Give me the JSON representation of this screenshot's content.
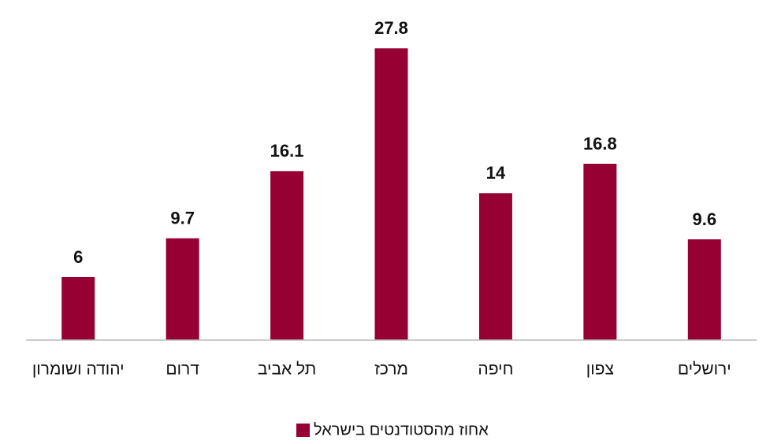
{
  "chart_data": {
    "type": "bar",
    "categories": [
      "יהודה ושומרון",
      "דרום",
      "תל אביב",
      "מרכז",
      "חיפה",
      "צפון",
      "ירושלים"
    ],
    "series": [
      {
        "name": "אחוז מהסטודנטים בישראל",
        "color": "#960032",
        "values": [
          6,
          9.7,
          16.1,
          27.8,
          14,
          16.8,
          9.6
        ]
      }
    ],
    "ylim": [
      0,
      30
    ],
    "legend": "bottom"
  }
}
